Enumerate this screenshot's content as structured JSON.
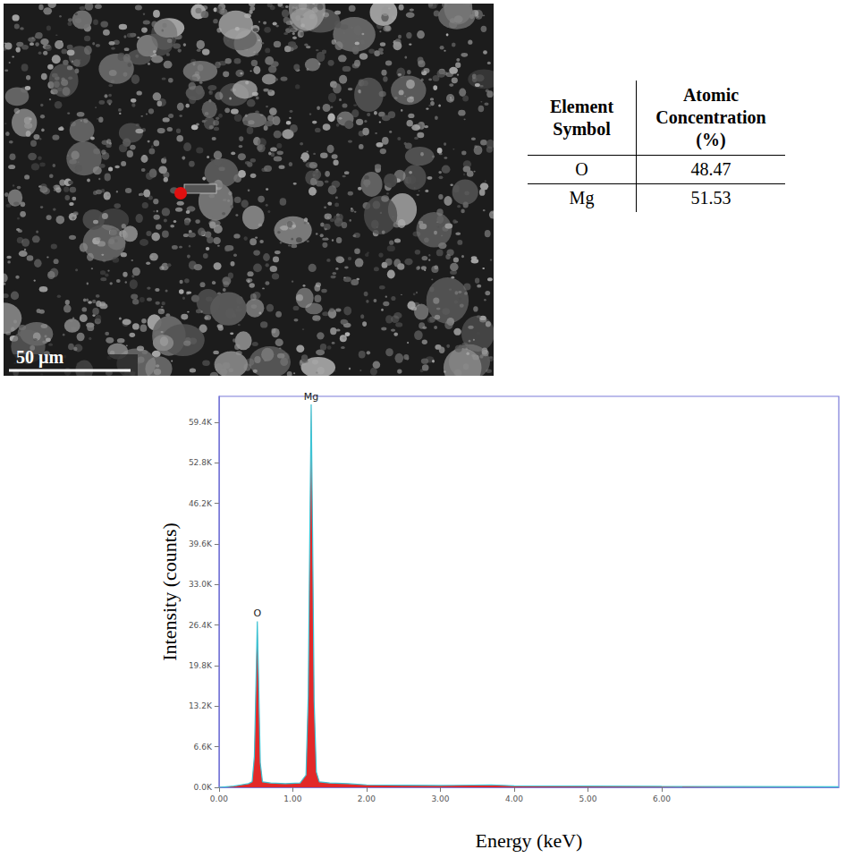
{
  "image": {
    "scale_bar": "50 µm"
  },
  "table": {
    "header": [
      "Element Symbol",
      "Atomic Concentration (%)"
    ],
    "rows": [
      [
        "O",
        48.47
      ],
      [
        "Mg",
        51.53
      ]
    ]
  },
  "chart_data": {
    "type": "line",
    "x_label": "Energy (keV)",
    "y_label": "Intensity (counts)",
    "x": [
      0.0,
      0.2,
      0.3,
      0.4,
      0.45,
      0.48,
      0.5,
      0.52,
      0.54,
      0.56,
      0.59,
      0.7,
      0.9,
      1.1,
      1.18,
      1.21,
      1.23,
      1.25,
      1.27,
      1.29,
      1.32,
      1.36,
      1.5,
      1.75,
      2.0,
      2.5,
      3.0,
      3.69,
      4.0,
      5.0,
      6.0,
      7.0,
      8.4
    ],
    "values": [
      0,
      200,
      400,
      600,
      900,
      5000,
      16000,
      27000,
      16000,
      4000,
      900,
      700,
      600,
      700,
      2000,
      15000,
      40000,
      62300,
      40000,
      14000,
      2500,
      900,
      700,
      600,
      400,
      350,
      300,
      400,
      250,
      200,
      150,
      120,
      100
    ],
    "color": "#e01e1e",
    "xlim": [
      0,
      8.4
    ],
    "xticks": [
      {
        "value": 0,
        "label": "0.00"
      },
      {
        "value": 1,
        "label": "1.00"
      },
      {
        "value": 2,
        "label": "2.00"
      },
      {
        "value": 3,
        "label": "3.00"
      },
      {
        "value": 4,
        "label": "4.00"
      },
      {
        "value": 5,
        "label": "5.00"
      },
      {
        "value": 6,
        "label": "6.00"
      }
    ],
    "ylim": [
      0,
      63600
    ],
    "yticks": [
      {
        "value": 0,
        "label": "0.0K"
      },
      {
        "value": 6600,
        "label": "6.6K"
      },
      {
        "value": 13200,
        "label": "13.2K"
      },
      {
        "value": 19800,
        "label": "19.8K"
      },
      {
        "value": 26400,
        "label": "26.4K"
      },
      {
        "value": 33000,
        "label": "33.0K"
      },
      {
        "value": 39600,
        "label": "39.6K"
      },
      {
        "value": 46200,
        "label": "46.2K"
      },
      {
        "value": 52800,
        "label": "52.8K"
      },
      {
        "value": 59400,
        "label": "59.4K"
      }
    ],
    "grid": false,
    "annotations": [
      {
        "text": "O",
        "x": 0.52,
        "y": 27000
      },
      {
        "text": "Mg",
        "x": 1.25,
        "y": 62300
      }
    ]
  }
}
